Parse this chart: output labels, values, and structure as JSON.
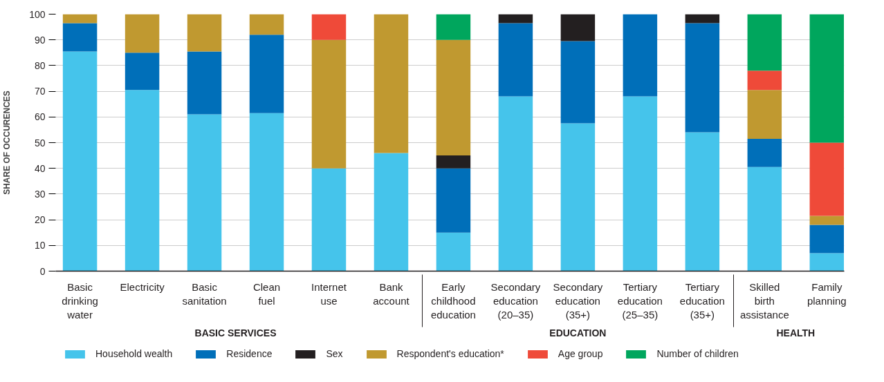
{
  "chart_data": {
    "type": "bar",
    "stacked": true,
    "ylabel": "SHARE OF OCCURENCES",
    "categories": [
      "Basic\ndrinking\nwater",
      "Electricity",
      "Basic\nsanitation",
      "Clean\nfuel",
      "Internet\nuse",
      "Bank\naccount",
      "Early\nchildhood\neducation",
      "Secondary\neducation\n(20–35)",
      "Secondary\neducation\n(35+)",
      "Tertiary\neducation\n(25–35)",
      "Tertiary\neducation\n(35+)",
      "Skilled\nbirth\nassistance",
      "Family\nplanning"
    ],
    "series": [
      {
        "name": "Household wealth",
        "color": "#45c4eb",
        "values": [
          85.5,
          70.5,
          61,
          61.5,
          40,
          46,
          15,
          68,
          57.5,
          68,
          54,
          40.5,
          7
        ]
      },
      {
        "name": "Residence",
        "color": "#006fb9",
        "values": [
          11,
          14.5,
          24.5,
          30.5,
          0,
          0,
          25,
          28.5,
          32,
          32,
          42.5,
          11,
          11
        ]
      },
      {
        "name": "Sex",
        "color": "#231f20",
        "values": [
          0,
          0,
          0,
          0,
          0,
          0,
          5,
          3.5,
          10.5,
          0,
          3.5,
          0,
          0
        ]
      },
      {
        "name": "Respondent's education*",
        "color": "#c09930",
        "values": [
          3.5,
          15,
          14.5,
          8,
          50,
          54,
          45,
          0,
          0,
          0,
          0,
          19,
          3.5
        ]
      },
      {
        "name": "Age group",
        "color": "#ef4a39",
        "values": [
          0,
          0,
          0,
          0,
          10,
          0,
          0,
          0,
          0,
          0,
          0,
          7.5,
          28.5
        ]
      },
      {
        "name": "Number of children",
        "color": "#00a65d",
        "values": [
          0,
          0,
          0,
          0,
          0,
          0,
          10,
          0,
          0,
          0,
          0,
          22,
          50
        ]
      }
    ],
    "ylim": [
      0,
      100
    ],
    "yticks": [
      0,
      10,
      20,
      30,
      40,
      50,
      60,
      70,
      80,
      90,
      100
    ],
    "grid": "y",
    "legend": "bottom",
    "annotations": [
      "BASIC SERVICES",
      "EDUCATION",
      "HEALTH"
    ]
  }
}
